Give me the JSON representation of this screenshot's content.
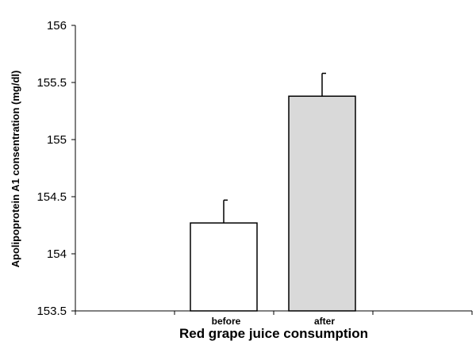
{
  "chart_data": {
    "type": "bar",
    "categories": [
      "before",
      "after"
    ],
    "values": [
      154.27,
      155.38
    ],
    "error_plus": [
      0.2,
      0.2
    ],
    "colors": [
      "#ffffff",
      "#d9d9d9"
    ],
    "edge_color": "#000000",
    "title": "",
    "xlabel": "Red grape juice consumption",
    "ylabel": "Apolipoprotein A1 consentration (mg/dl)",
    "ylim": [
      153.5,
      156
    ],
    "yticks": [
      153.5,
      154,
      154.5,
      155,
      155.5,
      156
    ],
    "ytick_labels": [
      "153.5",
      "154",
      "154.5",
      "155",
      "155.5",
      "156"
    ],
    "grid": false,
    "legend": "none"
  }
}
